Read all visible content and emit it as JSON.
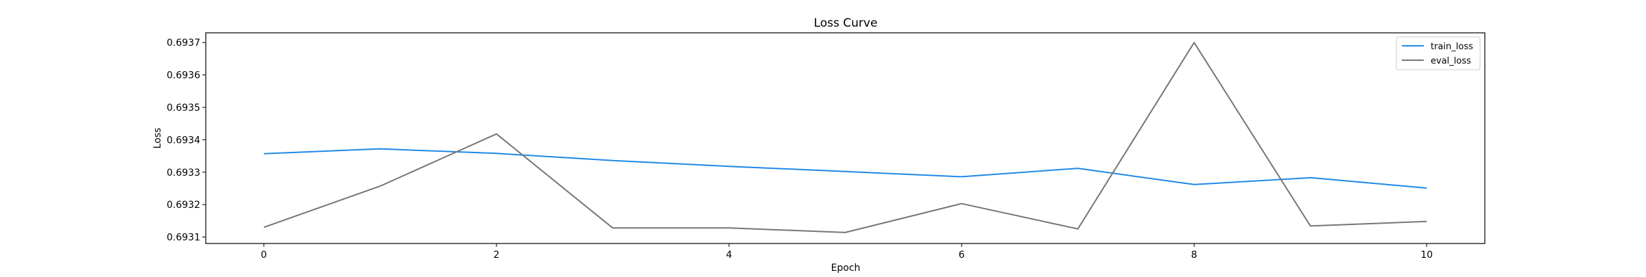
{
  "chart_data": {
    "type": "line",
    "title": "Loss Curve",
    "xlabel": "Epoch",
    "ylabel": "Loss",
    "x": [
      0,
      1,
      2,
      3,
      4,
      5,
      6,
      7,
      8,
      9,
      10
    ],
    "xlim": [
      -0.5,
      10.5
    ],
    "ylim": [
      0.69308,
      0.69373
    ],
    "xticks": [
      0,
      2,
      4,
      6,
      8,
      10
    ],
    "xtick_labels": [
      "0",
      "2",
      "4",
      "6",
      "8",
      "10"
    ],
    "yticks": [
      0.6931,
      0.6932,
      0.6933,
      0.6934,
      0.6935,
      0.6936,
      0.6937
    ],
    "ytick_labels": [
      "0.6931",
      "0.6932",
      "0.6933",
      "0.6934",
      "0.6935",
      "0.6936",
      "0.6937"
    ],
    "grid": false,
    "legend_position": "top-right",
    "series": [
      {
        "name": "train_loss",
        "color": "#1f88e5",
        "values": [
          0.693357,
          0.693372,
          0.693358,
          0.693336,
          0.693318,
          0.693302,
          0.693286,
          0.693312,
          0.693262,
          0.693283,
          0.693251
        ]
      },
      {
        "name": "eval_loss",
        "color": "#757575",
        "values": [
          0.69313,
          0.693257,
          0.693418,
          0.693128,
          0.693128,
          0.693114,
          0.693203,
          0.693125,
          0.6937,
          0.693134,
          0.693148
        ]
      }
    ]
  }
}
